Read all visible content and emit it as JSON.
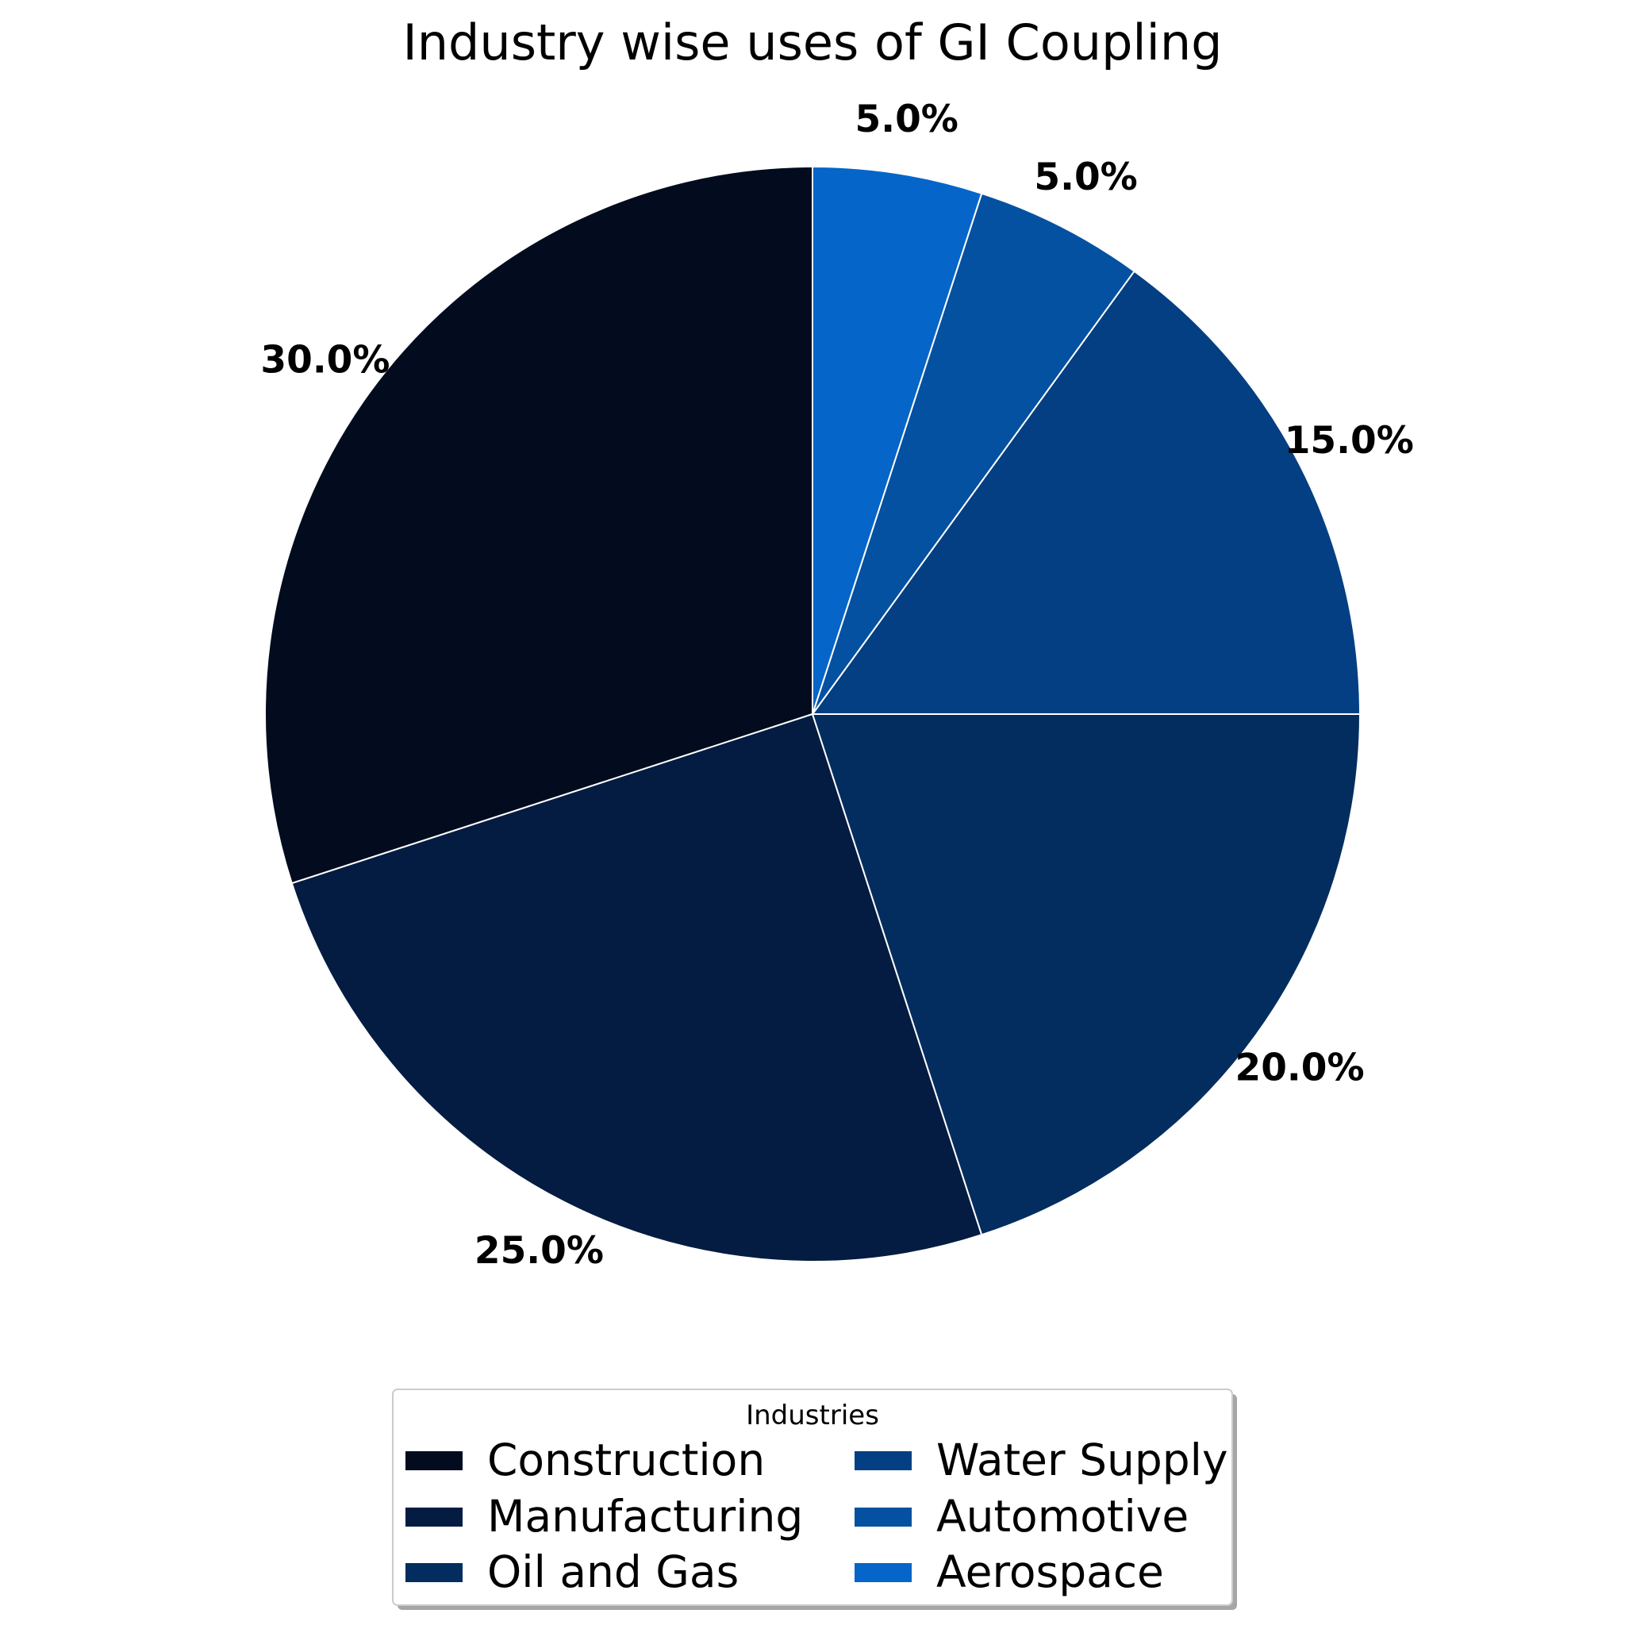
{
  "chart_data": {
    "type": "pie",
    "title": "Industry wise uses of GI Coupling",
    "slices": [
      {
        "label": "Construction",
        "value": 30.0,
        "display": "30.0%",
        "color": "#020c1e"
      },
      {
        "label": "Manufacturing",
        "value": 25.0,
        "display": "25.0%",
        "color": "#041c41"
      },
      {
        "label": "Oil and Gas",
        "value": 20.0,
        "display": "20.0%",
        "color": "#042d5f"
      },
      {
        "label": "Water Supply",
        "value": 15.0,
        "display": "15.0%",
        "color": "#033f82"
      },
      {
        "label": "Automotive",
        "value": 5.0,
        "display": "5.0%",
        "color": "#0451a1"
      },
      {
        "label": "Aerospace",
        "value": 5.0,
        "display": "5.0%",
        "color": "#0565c8"
      }
    ],
    "start": "top",
    "direction": "counterclockwise",
    "legend": {
      "title": "Industries",
      "placement": "bottom-center",
      "columns": 2
    }
  }
}
